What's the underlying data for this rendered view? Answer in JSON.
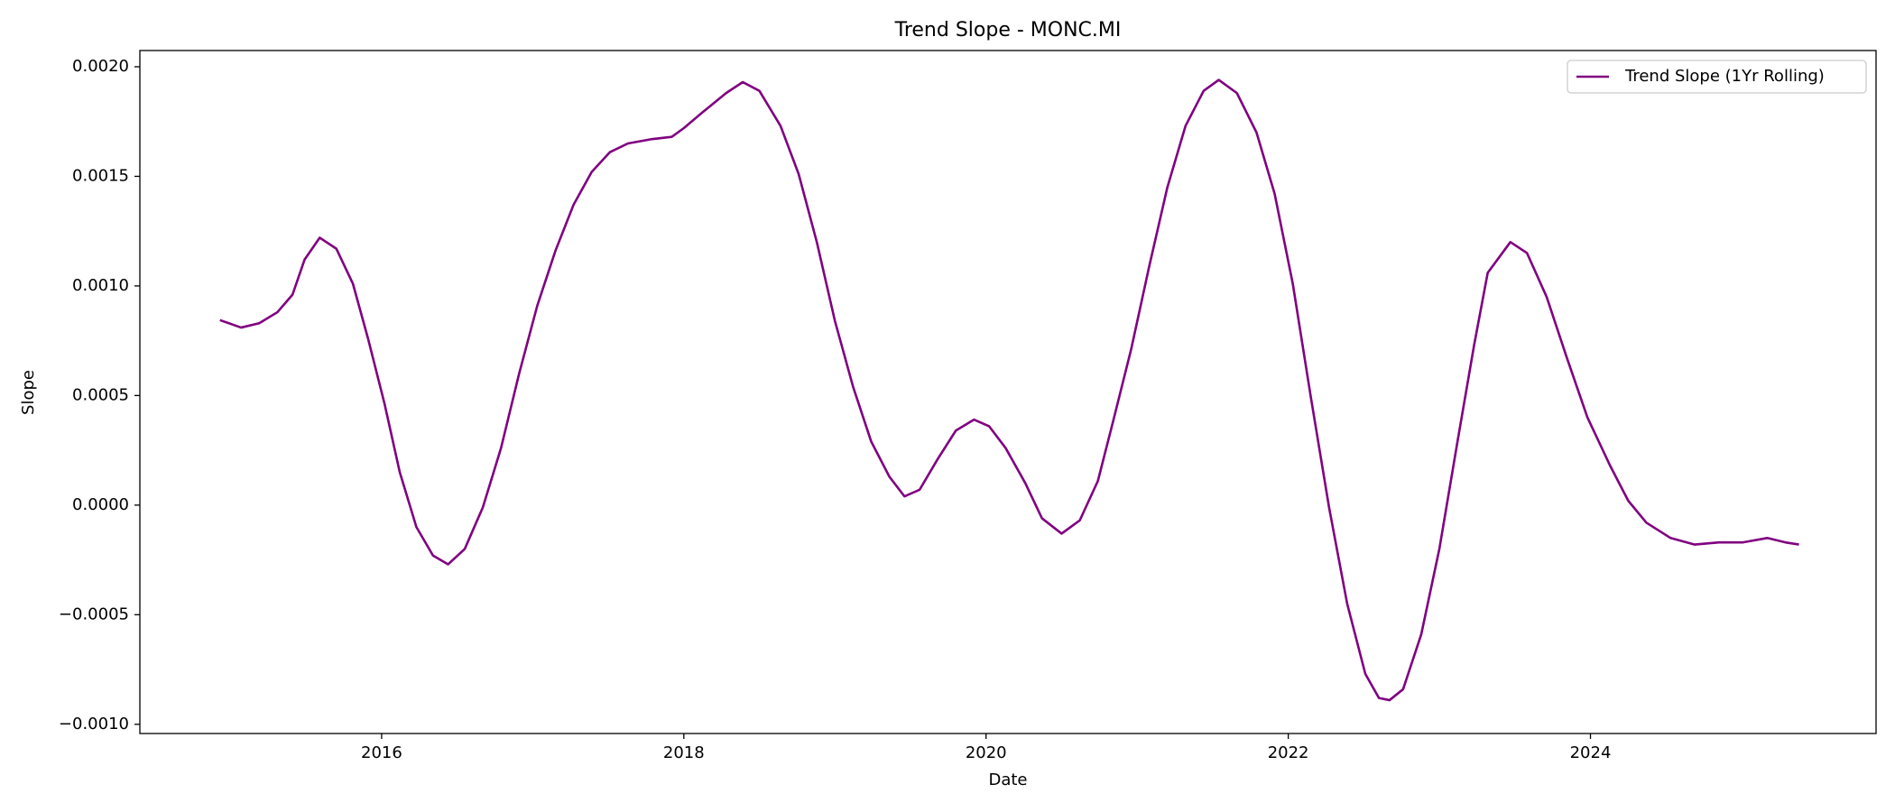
{
  "chart_data": {
    "type": "line",
    "title": "Trend Slope - MONC.MI",
    "x_label": "Date",
    "y_label": "Slope",
    "xlim": [
      2014.4,
      2025.89
    ],
    "xticks": [
      2016,
      2018,
      2020,
      2022,
      2024
    ],
    "ylim": [
      -0.001042,
      0.002074
    ],
    "yticks": [
      {
        "value": -0.001,
        "label": "−0.0010"
      },
      {
        "value": -0.0005,
        "label": "−0.0005"
      },
      {
        "value": 0,
        "label": "0.0000"
      },
      {
        "value": 0.0005,
        "label": "0.0005"
      },
      {
        "value": 0.001,
        "label": "0.0010"
      },
      {
        "value": 0.0015,
        "label": "0.0015"
      },
      {
        "value": 0.002,
        "label": "0.0020"
      }
    ],
    "grid": false,
    "legend": "upper right",
    "series": [
      {
        "name": "Trend Slope (1Yr Rolling)",
        "color": "#800080",
        "x": [
          2014.93,
          2015.07,
          2015.19,
          2015.31,
          2015.41,
          2015.49,
          2015.59,
          2015.7,
          2015.81,
          2015.91,
          2016.02,
          2016.12,
          2016.23,
          2016.34,
          2016.44,
          2016.55,
          2016.67,
          2016.79,
          2016.91,
          2017.03,
          2017.15,
          2017.27,
          2017.39,
          2017.51,
          2017.63,
          2017.79,
          2017.92,
          2018.0,
          2018.12,
          2018.28,
          2018.39,
          2018.5,
          2018.64,
          2018.76,
          2018.88,
          2019.0,
          2019.12,
          2019.24,
          2019.36,
          2019.46,
          2019.56,
          2019.68,
          2019.8,
          2019.92,
          2020.02,
          2020.13,
          2020.26,
          2020.37,
          2020.5,
          2020.62,
          2020.74,
          2020.84,
          2020.96,
          2021.08,
          2021.2,
          2021.32,
          2021.44,
          2021.54,
          2021.66,
          2021.79,
          2021.91,
          2022.03,
          2022.15,
          2022.27,
          2022.39,
          2022.51,
          2022.6,
          2022.67,
          2022.76,
          2022.88,
          2023.0,
          2023.12,
          2023.23,
          2023.32,
          2023.47,
          2023.58,
          2023.71,
          2023.84,
          2023.98,
          2024.13,
          2024.25,
          2024.37,
          2024.53,
          2024.69,
          2024.85,
          2025.01,
          2025.17,
          2025.29,
          2025.38
        ],
        "values": [
          0.000844,
          0.00081,
          0.00083,
          0.00088,
          0.00096,
          0.00112,
          0.00122,
          0.00117,
          0.00101,
          0.00076,
          0.00046,
          0.00015,
          -0.0001,
          -0.00023,
          -0.00027,
          -0.0002,
          -1e-05,
          0.00026,
          0.0006,
          0.00091,
          0.00116,
          0.00137,
          0.00152,
          0.00161,
          0.00165,
          0.00167,
          0.00168,
          0.00172,
          0.00179,
          0.00188,
          0.00193,
          0.00189,
          0.00173,
          0.00151,
          0.0012,
          0.00084,
          0.00054,
          0.00029,
          0.00013,
          4e-05,
          7e-05,
          0.00021,
          0.00034,
          0.00039,
          0.00036,
          0.00026,
          0.0001,
          -6e-05,
          -0.00013,
          -7e-05,
          0.00011,
          0.00038,
          0.00071,
          0.00109,
          0.00145,
          0.00173,
          0.00189,
          0.00194,
          0.00188,
          0.0017,
          0.00142,
          0.00101,
          0.00049,
          -1e-05,
          -0.00045,
          -0.00077,
          -0.00088,
          -0.00089,
          -0.00084,
          -0.00059,
          -0.0002,
          0.00029,
          0.00073,
          0.00106,
          0.0012,
          0.00115,
          0.00095,
          0.00068,
          0.0004,
          0.00018,
          2e-05,
          -8e-05,
          -0.00015,
          -0.00018,
          -0.00017,
          -0.00017,
          -0.00015,
          -0.00017,
          -0.00018
        ]
      }
    ]
  }
}
